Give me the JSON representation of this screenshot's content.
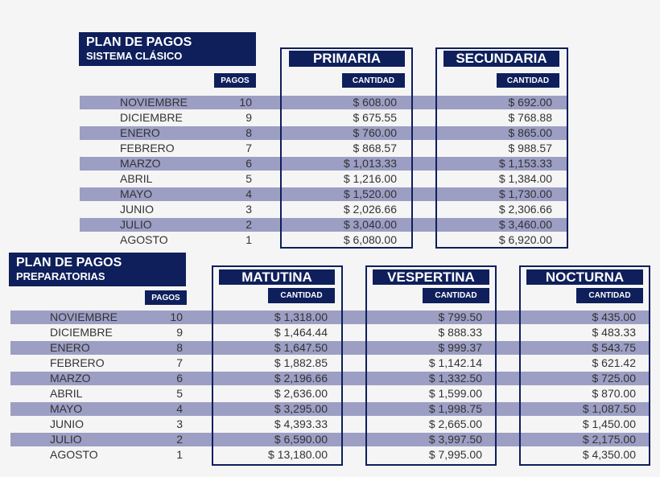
{
  "colors": {
    "navy": "#0e1f5b",
    "stripe": "#9c9ec4",
    "background": "#f5f5f5",
    "text": "#333333"
  },
  "section1": {
    "title": "PLAN DE PAGOS",
    "subtitle": "SISTEMA CLÁSICO",
    "pagos_label": "PAGOS",
    "columns": [
      {
        "name": "PRIMARIA",
        "sub": "CANTIDAD"
      },
      {
        "name": "SECUNDARIA",
        "sub": "CANTIDAD"
      }
    ],
    "rows": [
      {
        "month": "NOVIEMBRE",
        "pagos": "10",
        "values": [
          "$ 608.00",
          "$ 692.00"
        ]
      },
      {
        "month": "DICIEMBRE",
        "pagos": "9",
        "values": [
          "$ 675.55",
          "$ 768.88"
        ]
      },
      {
        "month": "ENERO",
        "pagos": "8",
        "values": [
          "$ 760.00",
          "$ 865.00"
        ]
      },
      {
        "month": "FEBRERO",
        "pagos": "7",
        "values": [
          "$ 868.57",
          "$ 988.57"
        ]
      },
      {
        "month": "MARZO",
        "pagos": "6",
        "values": [
          "$ 1,013.33",
          "$ 1,153.33"
        ]
      },
      {
        "month": "ABRIL",
        "pagos": "5",
        "values": [
          "$ 1,216.00",
          "$ 1,384.00"
        ]
      },
      {
        "month": "MAYO",
        "pagos": "4",
        "values": [
          "$ 1,520.00",
          "$ 1,730.00"
        ]
      },
      {
        "month": "JUNIO",
        "pagos": "3",
        "values": [
          "$ 2,026.66",
          "$ 2,306.66"
        ]
      },
      {
        "month": "JULIO",
        "pagos": "2",
        "values": [
          "$ 3,040.00",
          "$ 3,460.00"
        ]
      },
      {
        "month": "AGOSTO",
        "pagos": "1",
        "values": [
          "$ 6,080.00",
          "$ 6,920.00"
        ]
      }
    ]
  },
  "section2": {
    "title": "PLAN DE PAGOS",
    "subtitle": "PREPARATORIAS",
    "pagos_label": "PAGOS",
    "columns": [
      {
        "name": "MATUTINA",
        "sub": "CANTIDAD"
      },
      {
        "name": "VESPERTINA",
        "sub": "CANTIDAD"
      },
      {
        "name": "NOCTURNA",
        "sub": "CANTIDAD"
      }
    ],
    "rows": [
      {
        "month": "NOVIEMBRE",
        "pagos": "10",
        "values": [
          "$ 1,318.00",
          "$ 799.50",
          "$ 435.00"
        ]
      },
      {
        "month": "DICIEMBRE",
        "pagos": "9",
        "values": [
          "$ 1,464.44",
          "$ 888.33",
          "$ 483.33"
        ]
      },
      {
        "month": "ENERO",
        "pagos": "8",
        "values": [
          "$ 1,647.50",
          "$ 999.37",
          "$ 543.75"
        ]
      },
      {
        "month": "FEBRERO",
        "pagos": "7",
        "values": [
          "$ 1,882.85",
          "$ 1,142.14",
          "$ 621.42"
        ]
      },
      {
        "month": "MARZO",
        "pagos": "6",
        "values": [
          "$ 2,196.66",
          "$ 1,332.50",
          "$ 725.00"
        ]
      },
      {
        "month": "ABRIL",
        "pagos": "5",
        "values": [
          "$ 2,636.00",
          "$ 1,599.00",
          "$ 870.00"
        ]
      },
      {
        "month": "MAYO",
        "pagos": "4",
        "values": [
          "$ 3,295.00",
          "$ 1,998.75",
          "$ 1,087.50"
        ]
      },
      {
        "month": "JUNIO",
        "pagos": "3",
        "values": [
          "$ 4,393.33",
          "$ 2,665.00",
          "$ 1,450.00"
        ]
      },
      {
        "month": "JULIO",
        "pagos": "2",
        "values": [
          "$ 6,590.00",
          "$ 3,997.50",
          "$ 2,175.00"
        ]
      },
      {
        "month": "AGOSTO",
        "pagos": "1",
        "values": [
          "$ 13,180.00",
          "$ 7,995.00",
          "$ 4,350.00"
        ]
      }
    ]
  }
}
